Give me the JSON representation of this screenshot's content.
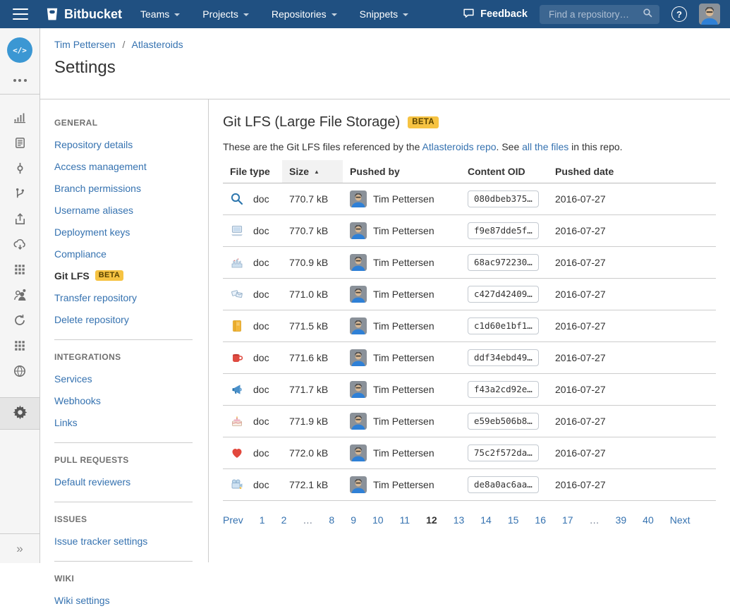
{
  "colors": {
    "navbar": "#205081",
    "link": "#3572b0",
    "badge_bg": "#f6c342",
    "badge_text": "#594300",
    "accent": "#3b97d3"
  },
  "navbar": {
    "logo_text": "Bitbucket",
    "menus": [
      "Teams",
      "Projects",
      "Repositories",
      "Snippets"
    ],
    "feedback_label": "Feedback",
    "search": {
      "placeholder": "Find a repository…"
    },
    "help_glyph": "?"
  },
  "rail": {
    "repo_avatar_glyph": "</>",
    "icons": [
      "charts",
      "documents",
      "commits",
      "branches",
      "upload",
      "pipelines",
      "addons",
      "members",
      "builds",
      "apps",
      "website"
    ],
    "expand_glyph": "»"
  },
  "header": {
    "breadcrumb": [
      {
        "label": "Tim Pettersen"
      },
      {
        "label": "Atlasteroids"
      }
    ],
    "separator": "/",
    "title": "Settings"
  },
  "settings_menu": {
    "sections": [
      {
        "heading": "GENERAL",
        "items": [
          {
            "label": "Repository details"
          },
          {
            "label": "Access management"
          },
          {
            "label": "Branch permissions"
          },
          {
            "label": "Username aliases"
          },
          {
            "label": "Deployment keys"
          },
          {
            "label": "Compliance"
          },
          {
            "label": "Git LFS",
            "active": true,
            "badge": "BETA"
          },
          {
            "label": "Transfer repository"
          },
          {
            "label": "Delete repository"
          }
        ]
      },
      {
        "heading": "INTEGRATIONS",
        "items": [
          {
            "label": "Services"
          },
          {
            "label": "Webhooks"
          },
          {
            "label": "Links"
          }
        ]
      },
      {
        "heading": "PULL REQUESTS",
        "items": [
          {
            "label": "Default reviewers"
          }
        ]
      },
      {
        "heading": "ISSUES",
        "items": [
          {
            "label": "Issue tracker settings"
          }
        ]
      },
      {
        "heading": "WIKI",
        "items": [
          {
            "label": "Wiki settings"
          }
        ]
      }
    ]
  },
  "main": {
    "title": "Git LFS (Large File Storage)",
    "badge": "BETA",
    "intro": {
      "text_before": "These are the Git LFS files referenced by the ",
      "link1": "Atlasteroids repo",
      "text_mid": ". See ",
      "link2": "all the files",
      "text_after": " in this repo."
    },
    "table": {
      "columns": [
        {
          "label": "File type"
        },
        {
          "label": "Size",
          "sorted": "asc"
        },
        {
          "label": "Pushed by"
        },
        {
          "label": "Content OID"
        },
        {
          "label": "Pushed date"
        }
      ],
      "rows": [
        {
          "icon": "magnifier",
          "file_type": "doc",
          "size": "770.7 kB",
          "pushed_by": "Tim Pettersen",
          "content_oid": "080dbeb375…",
          "pushed_date": "2016-07-27"
        },
        {
          "icon": "laptop",
          "file_type": "doc",
          "size": "770.7 kB",
          "pushed_by": "Tim Pettersen",
          "content_oid": "f9e87dde5f…",
          "pushed_date": "2016-07-27"
        },
        {
          "icon": "castle",
          "file_type": "doc",
          "size": "770.9 kB",
          "pushed_by": "Tim Pettersen",
          "content_oid": "68ac972230…",
          "pushed_date": "2016-07-27"
        },
        {
          "icon": "letters",
          "file_type": "doc",
          "size": "771.0 kB",
          "pushed_by": "Tim Pettersen",
          "content_oid": "c427d42409…",
          "pushed_date": "2016-07-27"
        },
        {
          "icon": "notebook",
          "file_type": "doc",
          "size": "771.5 kB",
          "pushed_by": "Tim Pettersen",
          "content_oid": "c1d60e1bf1…",
          "pushed_date": "2016-07-27"
        },
        {
          "icon": "cup",
          "file_type": "doc",
          "size": "771.6 kB",
          "pushed_by": "Tim Pettersen",
          "content_oid": "ddf34ebd49…",
          "pushed_date": "2016-07-27"
        },
        {
          "icon": "megaphone",
          "file_type": "doc",
          "size": "771.7 kB",
          "pushed_by": "Tim Pettersen",
          "content_oid": "f43a2cd92e…",
          "pushed_date": "2016-07-27"
        },
        {
          "icon": "cake",
          "file_type": "doc",
          "size": "771.9 kB",
          "pushed_by": "Tim Pettersen",
          "content_oid": "e59eb506b8…",
          "pushed_date": "2016-07-27"
        },
        {
          "icon": "heart",
          "file_type": "doc",
          "size": "772.0 kB",
          "pushed_by": "Tim Pettersen",
          "content_oid": "75c2f572da…",
          "pushed_date": "2016-07-27"
        },
        {
          "icon": "movie-camera",
          "file_type": "doc",
          "size": "772.1 kB",
          "pushed_by": "Tim Pettersen",
          "content_oid": "de8a0ac6aa…",
          "pushed_date": "2016-07-27"
        }
      ]
    },
    "pagination": {
      "items": [
        "Prev",
        "1",
        "2",
        "…",
        "8",
        "9",
        "10",
        "11",
        "12",
        "13",
        "14",
        "15",
        "16",
        "17",
        "…",
        "39",
        "40",
        "Next"
      ],
      "current": "12"
    }
  }
}
